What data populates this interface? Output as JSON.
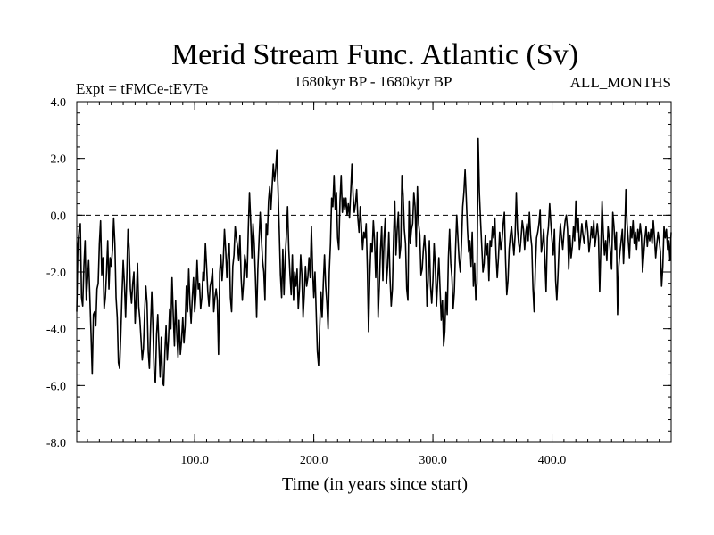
{
  "chart_data": {
    "type": "line",
    "title": "Merid Stream Func. Atlantic (Sv)",
    "subtitle_left": "Expt = tFMCe-tEVTe",
    "subtitle_center": "1680kyr BP - 1680kyr BP",
    "subtitle_right": "ALL_MONTHS",
    "xlabel": "Time (in years since start)",
    "ylabel": "",
    "xlim": [
      1,
      500
    ],
    "ylim": [
      -8.0,
      4.0
    ],
    "x_ticks": [
      100.0,
      200.0,
      300.0,
      400.0
    ],
    "x_tick_labels": [
      "100.0",
      "200.0",
      "300.0",
      "400.0"
    ],
    "y_ticks": [
      4.0,
      2.0,
      0.0,
      -2.0,
      -4.0,
      -6.0,
      -8.0
    ],
    "y_tick_labels": [
      "4.0",
      "2.0",
      "0.0",
      "-2.0",
      "-4.0",
      "-6.0",
      "-8.0"
    ],
    "reference_line": {
      "y": 0.0,
      "style": "dashed"
    },
    "grid": false,
    "series": [
      {
        "name": "tFMCe-tEVTe",
        "x_start": 1,
        "x_step": 1,
        "values": [
          -3.4,
          -1.0,
          -0.5,
          -0.3,
          -2.9,
          -3.2,
          -1.8,
          -0.9,
          -3.0,
          -2.3,
          -1.6,
          -2.9,
          -4.2,
          -5.6,
          -3.5,
          -3.4,
          -3.9,
          -2.6,
          -2.4,
          -1.0,
          -0.2,
          -2.1,
          -1.5,
          -3.3,
          -2.9,
          -2.0,
          -0.9,
          -2.6,
          -1.5,
          -1.8,
          -1.2,
          -0.1,
          -1.0,
          -2.9,
          -3.6,
          -5.2,
          -5.4,
          -4.2,
          -2.8,
          -1.6,
          -2.4,
          -3.6,
          -2.2,
          -0.5,
          -1.2,
          -2.6,
          -3.1,
          -2.4,
          -2.0,
          -3.8,
          -2.9,
          -1.7,
          -3.2,
          -3.7,
          -4.4,
          -5.1,
          -4.7,
          -3.4,
          -2.5,
          -3.1,
          -4.8,
          -5.4,
          -3.9,
          -2.7,
          -4.0,
          -5.6,
          -5.9,
          -4.2,
          -3.5,
          -4.6,
          -5.7,
          -4.3,
          -5.9,
          -6.0,
          -4.8,
          -3.9,
          -5.1,
          -4.4,
          -3.3,
          -4.0,
          -2.2,
          -3.5,
          -4.6,
          -3.0,
          -4.2,
          -5.0,
          -3.7,
          -4.9,
          -4.4,
          -3.6,
          -4.5,
          -3.9,
          -2.5,
          -3.4,
          -1.9,
          -3.1,
          -3.8,
          -2.9,
          -2.2,
          -3.4,
          -2.8,
          -1.6,
          -2.6,
          -2.4,
          -3.3,
          -2.9,
          -2.0,
          -2.3,
          -1.0,
          -1.8,
          -2.7,
          -3.2,
          -2.5,
          -2.3,
          -1.9,
          -3.4,
          -2.9,
          -2.6,
          -3.0,
          -4.9,
          -2.0,
          -1.4,
          -2.3,
          -1.6,
          -0.5,
          -1.2,
          -2.2,
          -1.4,
          -1.0,
          -2.9,
          -3.4,
          -1.8,
          -1.4,
          -0.4,
          -0.8,
          -1.1,
          -1.6,
          -0.7,
          -2.2,
          -3.0,
          -2.4,
          -1.4,
          -1.7,
          -2.2,
          -0.5,
          0.8,
          -0.2,
          -1.5,
          -0.3,
          -1.0,
          -2.2,
          -3.6,
          -1.9,
          -0.9,
          0.1,
          -0.8,
          -1.6,
          -2.0,
          -3.0,
          -0.3,
          -0.7,
          0.5,
          1.0,
          0.2,
          1.0,
          1.8,
          1.2,
          1.6,
          2.3,
          0.9,
          -0.5,
          -2.1,
          -2.9,
          -1.2,
          -2.8,
          -1.5,
          -0.7,
          0.3,
          -1.2,
          -2.1,
          -2.8,
          -1.4,
          -3.0,
          -2.0,
          -2.5,
          -1.9,
          -3.3,
          -2.6,
          -1.4,
          -2.1,
          -3.6,
          -2.8,
          -1.8,
          -2.5,
          -2.2,
          -1.5,
          -2.2,
          -0.4,
          -1.9,
          -2.9,
          -2.0,
          -3.4,
          -4.8,
          -5.3,
          -3.9,
          -2.7,
          -3.6,
          -2.4,
          -1.4,
          -2.5,
          -3.1,
          -4.0,
          -2.0,
          -1.0,
          0.6,
          0.3,
          1.4,
          0.2,
          0.8,
          -0.8,
          -1.2,
          0.5,
          1.4,
          0.1,
          0.6,
          0.2,
          0.6,
          0.0,
          0.4,
          -0.1,
          0.8,
          1.8,
          0.7,
          0.1,
          0.4,
          0.9,
          -0.1,
          -0.6,
          0.3,
          -0.4,
          -1.2,
          -0.6,
          -0.8,
          -0.3,
          -1.9,
          -4.1,
          -2.2,
          -1.0,
          -1.3,
          -0.2,
          -0.9,
          -2.2,
          -0.6,
          -3.6,
          -2.5,
          -1.2,
          -0.4,
          -2.3,
          -0.8,
          -0.1,
          -2.4,
          -1.8,
          -0.6,
          -2.2,
          -3.2,
          -2.6,
          -0.8,
          0.5,
          -1.4,
          -0.5,
          0.1,
          -1.5,
          -1.1,
          1.4,
          0.7,
          -0.5,
          -1.0,
          -2.6,
          -3.0,
          0.5,
          -1.0,
          -0.5,
          -0.3,
          0.8,
          0.3,
          -1.1,
          1.0,
          -0.3,
          -0.7,
          -2.1,
          -1.9,
          -1.2,
          -0.7,
          -1.4,
          -3.2,
          -2.3,
          -0.9,
          -2.5,
          -3.1,
          -2.3,
          -1.0,
          -1.8,
          -3.2,
          -2.3,
          -1.5,
          -2.6,
          -3.7,
          -3.0,
          -4.6,
          -4.1,
          -2.7,
          -3.5,
          -1.5,
          -0.5,
          -1.7,
          -2.2,
          -3.3,
          -2.7,
          -1.2,
          0.0,
          -0.8,
          -1.6,
          -2.0,
          -1.0,
          0.3,
          0.8,
          1.6,
          0.6,
          -0.5,
          -1.3,
          -0.9,
          -1.8,
          -0.6,
          -2.5,
          -1.7,
          -3.0,
          -2.4,
          2.7,
          0.8,
          -0.2,
          -1.1,
          -2.0,
          -1.7,
          -0.7,
          -1.4,
          -1.0,
          -2.3,
          -0.9,
          -1.1,
          -0.4,
          -0.8,
          -0.1,
          -1.4,
          -2.2,
          -1.5,
          -0.6,
          -1.2,
          -0.9,
          -0.3,
          0.1,
          -1.6,
          -2.8,
          -2.3,
          -1.2,
          -0.7,
          -0.4,
          -0.9,
          -1.4,
          -0.7,
          0.8,
          -0.5,
          -1.0,
          -1.3,
          -0.8,
          -0.2,
          -0.5,
          -1.2,
          -0.6,
          -0.3,
          -0.9,
          0.1,
          -0.7,
          -1.1,
          -2.6,
          -3.4,
          -1.9,
          -0.8,
          -0.6,
          -0.3,
          0.2,
          -1.3,
          -1.0,
          -0.5,
          -1.6,
          -2.7,
          -0.8,
          -0.4,
          0.4,
          -0.3,
          -0.9,
          -1.4,
          -0.5,
          -2.3,
          -3.0,
          -2.1,
          -1.0,
          -0.3,
          -0.8,
          -1.2,
          -0.6,
          -0.2,
          0.0,
          -0.5,
          -1.9,
          -0.7,
          -1.5,
          -1.1,
          -0.4,
          -0.9,
          0.5,
          -0.6,
          -0.1,
          -1.2,
          -0.8,
          -0.3,
          -0.7,
          -1.0,
          -0.5,
          -0.2,
          -0.6,
          -1.3,
          -0.9,
          -0.4,
          -0.8,
          -0.2,
          -1.1,
          -0.7,
          -0.3,
          -0.8,
          -2.7,
          -1.1,
          0.5,
          -0.6,
          -1.4,
          -0.9,
          -1.6,
          -0.4,
          -0.8,
          -1.3,
          -1.9,
          0.1,
          -0.4,
          -1.2,
          -0.6,
          -3.5,
          -1.8,
          -1.3,
          -0.9,
          -0.5,
          -1.7,
          -0.7,
          0.9,
          -0.3,
          -0.9,
          -1.5,
          -0.4,
          -0.8,
          -0.2,
          -1.0,
          -0.6,
          -1.2,
          -0.5,
          -0.9,
          -0.3,
          -0.7,
          -2.0,
          -1.4,
          -0.8,
          -0.4,
          -1.1,
          -0.6,
          -0.9,
          -0.5,
          -1.0,
          -0.2,
          -0.8,
          -1.5,
          -1.0,
          -0.6,
          -0.9,
          -1.3,
          -2.5,
          -1.8,
          -0.4,
          -0.8,
          -0.5,
          -1.2,
          -0.9,
          -1.6,
          -0.6
        ]
      }
    ]
  }
}
